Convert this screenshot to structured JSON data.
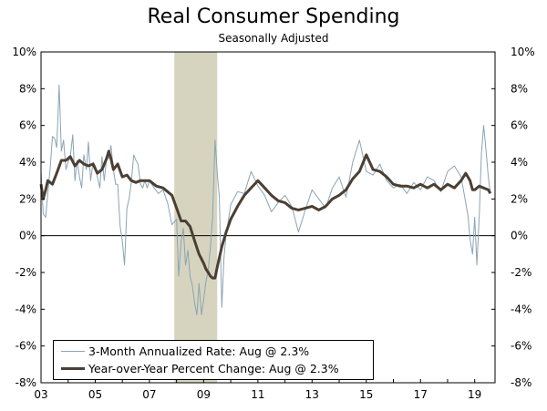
{
  "chart_data": {
    "type": "line",
    "title": "Real Consumer Spending",
    "subtitle": "Seasonally Adjusted",
    "y_range": [
      -8,
      10
    ],
    "y_ticks": [
      "10%",
      "8%",
      "6%",
      "4%",
      "2%",
      "0%",
      "-2%",
      "-4%",
      "-6%",
      "-8%"
    ],
    "y_tick_values": [
      10,
      8,
      6,
      4,
      2,
      0,
      -2,
      -4,
      -6,
      -8
    ],
    "x_range": [
      2003,
      2019.75
    ],
    "x_ticks": [
      "03",
      "05",
      "07",
      "09",
      "11",
      "13",
      "15",
      "17",
      "19"
    ],
    "x_tick_values": [
      2003,
      2005,
      2007,
      2009,
      2011,
      2013,
      2015,
      2017,
      2019
    ],
    "recession": {
      "start": 2007.917,
      "end": 2009.5
    },
    "colors": {
      "three_month": "#8aa4b4",
      "yoy": "#4b3f33",
      "recession": "#d6d4bf"
    },
    "legend": [
      "3-Month Annualized Rate: Aug @ 2.3%",
      "Year-over-Year Percent Change: Aug @ 2.3%"
    ],
    "series": [
      {
        "name": "3-Month Annualized Rate: Aug @ 2.3%",
        "x": [
          2003.0,
          2003.08,
          2003.17,
          2003.25,
          2003.33,
          2003.42,
          2003.5,
          2003.58,
          2003.67,
          2003.75,
          2003.83,
          2003.92,
          2004.0,
          2004.08,
          2004.17,
          2004.25,
          2004.33,
          2004.42,
          2004.5,
          2004.58,
          2004.67,
          2004.75,
          2004.83,
          2004.92,
          2005.0,
          2005.08,
          2005.17,
          2005.25,
          2005.33,
          2005.42,
          2005.5,
          2005.58,
          2005.67,
          2005.75,
          2005.83,
          2005.92,
          2006.0,
          2006.08,
          2006.17,
          2006.25,
          2006.33,
          2006.42,
          2006.5,
          2006.58,
          2006.67,
          2006.75,
          2006.83,
          2006.92,
          2007.0,
          2007.17,
          2007.33,
          2007.5,
          2007.67,
          2007.83,
          2008.0,
          2008.08,
          2008.17,
          2008.25,
          2008.33,
          2008.42,
          2008.5,
          2008.58,
          2008.67,
          2008.75,
          2008.83,
          2008.92,
          2009.0,
          2009.08,
          2009.17,
          2009.25,
          2009.33,
          2009.42,
          2009.5,
          2009.58,
          2009.67,
          2009.75,
          2009.83,
          2009.92,
          2010.0,
          2010.25,
          2010.5,
          2010.75,
          2011.0,
          2011.25,
          2011.5,
          2011.75,
          2012.0,
          2012.25,
          2012.5,
          2012.75,
          2013.0,
          2013.25,
          2013.5,
          2013.75,
          2014.0,
          2014.25,
          2014.5,
          2014.75,
          2015.0,
          2015.25,
          2015.5,
          2015.75,
          2016.0,
          2016.25,
          2016.5,
          2016.75,
          2017.0,
          2017.25,
          2017.5,
          2017.75,
          2018.0,
          2018.25,
          2018.5,
          2018.75,
          2018.83,
          2018.92,
          2019.0,
          2019.08,
          2019.17,
          2019.25,
          2019.33,
          2019.42,
          2019.5,
          2019.58
        ],
        "values": [
          3.5,
          1.2,
          1.0,
          2.3,
          3.5,
          5.4,
          5.3,
          4.8,
          8.2,
          4.6,
          5.2,
          3.6,
          4.0,
          4.3,
          5.5,
          3.0,
          4.1,
          3.2,
          2.6,
          4.4,
          3.6,
          5.1,
          3.0,
          4.0,
          3.8,
          3.2,
          2.6,
          4.3,
          3.0,
          4.2,
          4.2,
          4.9,
          3.6,
          2.8,
          2.8,
          0.5,
          -0.3,
          -1.6,
          1.5,
          2.0,
          2.9,
          4.4,
          4.1,
          3.9,
          2.8,
          2.6,
          3.0,
          2.6,
          3.0,
          2.6,
          2.3,
          2.5,
          1.8,
          0.6,
          0.9,
          -2.2,
          -0.3,
          0.4,
          -1.6,
          -0.8,
          -2.2,
          -2.7,
          -3.7,
          -4.3,
          -2.6,
          -4.3,
          -3.5,
          -2.5,
          -1.9,
          -0.6,
          1.0,
          5.2,
          3.4,
          2.1,
          -3.9,
          -1.2,
          0.1,
          0.9,
          1.7,
          2.4,
          2.3,
          3.5,
          2.7,
          2.2,
          1.3,
          1.8,
          2.2,
          1.6,
          0.2,
          1.4,
          2.5,
          2.0,
          1.5,
          2.6,
          3.2,
          2.1,
          4.0,
          5.2,
          3.5,
          3.3,
          3.9,
          3.0,
          2.6,
          2.8,
          2.3,
          2.9,
          2.5,
          3.2,
          3.0,
          2.4,
          3.5,
          3.8,
          3.2,
          1.1,
          -0.2,
          -1.0,
          1.0,
          -1.6,
          1.2,
          4.5,
          6.0,
          4.6,
          3.2,
          2.3
        ]
      },
      {
        "name": "Year-over-Year Percent Change: Aug @ 2.3%",
        "x": [
          2003.0,
          2003.08,
          2003.17,
          2003.25,
          2003.42,
          2003.58,
          2003.75,
          2003.92,
          2004.08,
          2004.25,
          2004.42,
          2004.58,
          2004.75,
          2004.92,
          2005.08,
          2005.25,
          2005.42,
          2005.5,
          2005.58,
          2005.67,
          2005.83,
          2006.0,
          2006.17,
          2006.33,
          2006.5,
          2006.67,
          2006.83,
          2007.0,
          2007.25,
          2007.5,
          2007.67,
          2007.83,
          2008.0,
          2008.17,
          2008.33,
          2008.5,
          2008.67,
          2008.83,
          2009.0,
          2009.08,
          2009.17,
          2009.25,
          2009.33,
          2009.42,
          2009.5,
          2009.67,
          2009.83,
          2010.0,
          2010.25,
          2010.5,
          2010.75,
          2011.0,
          2011.25,
          2011.5,
          2011.75,
          2012.0,
          2012.25,
          2012.5,
          2012.75,
          2013.0,
          2013.25,
          2013.5,
          2013.75,
          2014.0,
          2014.25,
          2014.5,
          2014.75,
          2015.0,
          2015.25,
          2015.5,
          2015.75,
          2016.0,
          2016.25,
          2016.5,
          2016.75,
          2017.0,
          2017.25,
          2017.5,
          2017.75,
          2018.0,
          2018.25,
          2018.5,
          2018.67,
          2018.83,
          2018.92,
          2019.0,
          2019.17,
          2019.33,
          2019.5,
          2019.58
        ],
        "values": [
          2.8,
          2.0,
          2.5,
          3.0,
          2.8,
          3.4,
          4.1,
          4.1,
          4.3,
          3.8,
          4.1,
          3.9,
          3.8,
          3.9,
          3.4,
          3.6,
          4.2,
          4.6,
          4.2,
          3.6,
          3.9,
          3.2,
          3.3,
          3.0,
          2.9,
          3.0,
          3.0,
          3.0,
          2.7,
          2.6,
          2.4,
          2.2,
          1.5,
          0.8,
          0.8,
          0.5,
          -0.3,
          -1.0,
          -1.5,
          -1.8,
          -2.0,
          -2.2,
          -2.3,
          -2.3,
          -1.7,
          -0.6,
          0.2,
          0.9,
          1.6,
          2.2,
          2.6,
          3.0,
          2.6,
          2.2,
          1.9,
          1.8,
          1.5,
          1.4,
          1.5,
          1.6,
          1.4,
          1.6,
          2.0,
          2.2,
          2.5,
          3.1,
          3.5,
          4.4,
          3.6,
          3.5,
          3.2,
          2.8,
          2.7,
          2.7,
          2.6,
          2.8,
          2.6,
          2.8,
          2.5,
          2.8,
          2.6,
          3.0,
          3.4,
          3.0,
          2.5,
          2.5,
          2.7,
          2.6,
          2.5,
          2.3
        ]
      }
    ]
  }
}
